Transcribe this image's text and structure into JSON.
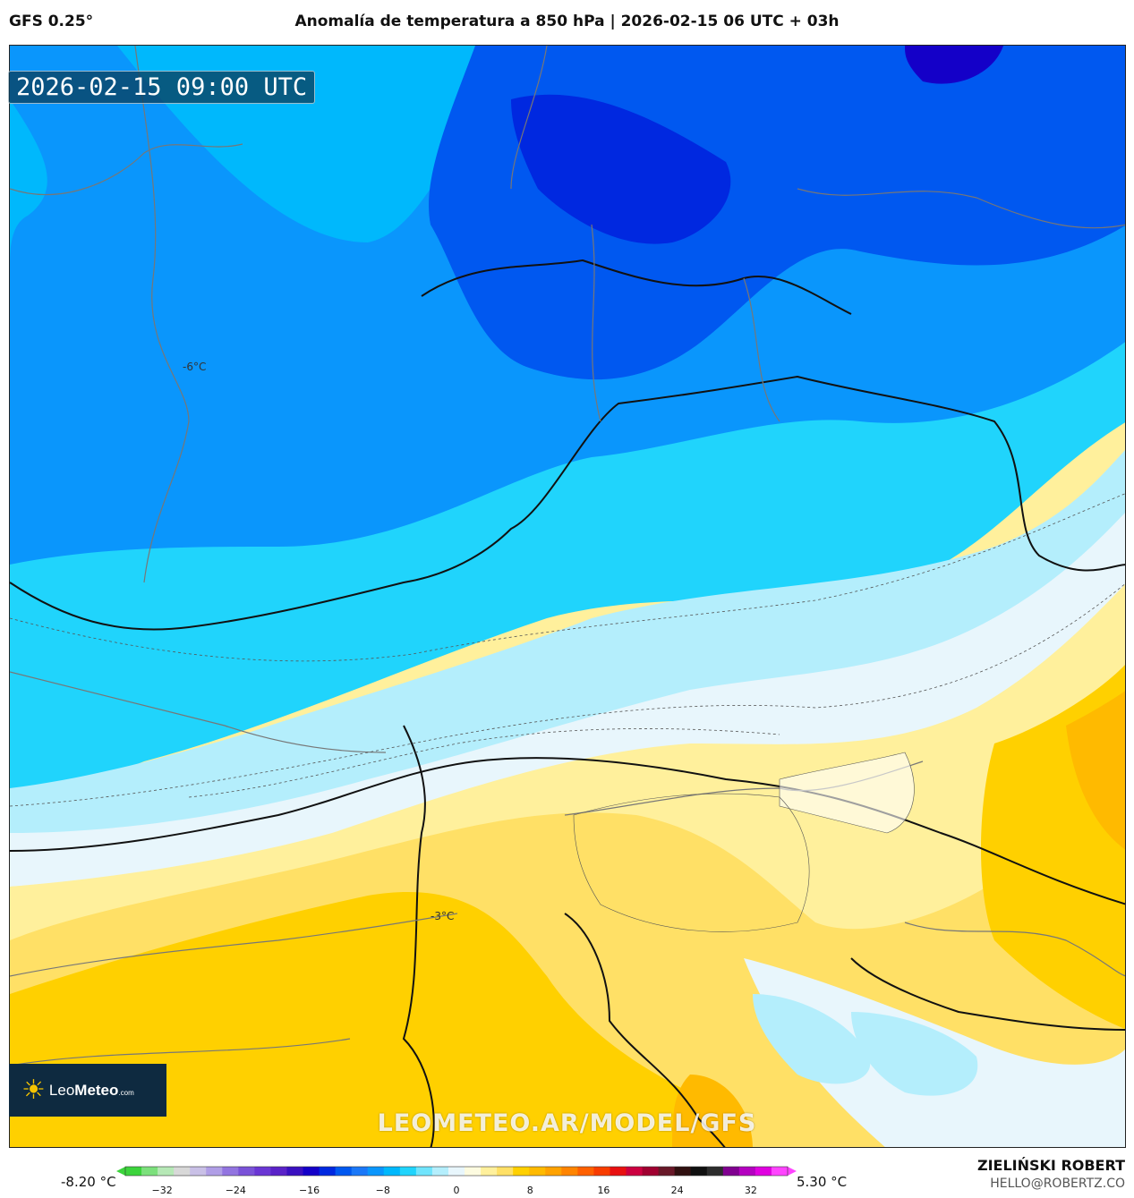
{
  "header": {
    "model": "GFS 0.25°",
    "title": "Anomalía de temperatura a 850 hPa | 2026-02-15 06 UTC + 03h"
  },
  "map": {
    "timestamp": "2026-02-15 09:00 UTC",
    "watermark_url": "LEOMETEO.AR/MODEL/GFS",
    "logo_text_light": "Leo",
    "logo_text_bold": "Meteo",
    "logo_text_suffix": ".com",
    "logo_icon": "sun-icon",
    "contour_labels": [
      "-6°C",
      "-3°C"
    ]
  },
  "colorbar": {
    "min_label": "-8.20 °C",
    "max_label": "5.30 °C",
    "ticks": [
      "−32",
      "−24",
      "−16",
      "−8",
      "0",
      "8",
      "16",
      "24",
      "32"
    ],
    "range": [
      -36,
      36
    ],
    "colors": [
      "#3cd43c",
      "#7ce07c",
      "#b6e8b6",
      "#d8d8d8",
      "#c9c0e6",
      "#b09ee6",
      "#9274e0",
      "#7a52d8",
      "#6a36d4",
      "#5a22c8",
      "#3a10c0",
      "#1400c8",
      "#0028e0",
      "#0058f0",
      "#1a78f8",
      "#0a96fc",
      "#00b8fc",
      "#20d4fc",
      "#70e4fc",
      "#b4eefc",
      "#e8f6fc",
      "#fdfbe0",
      "#fff09c",
      "#ffe066",
      "#ffd000",
      "#ffba00",
      "#ffa200",
      "#ff8400",
      "#ff6000",
      "#f83c00",
      "#e81010",
      "#cc0040",
      "#a00030",
      "#681828",
      "#301010",
      "#101010",
      "#2c2c2c",
      "#800090",
      "#b400c0",
      "#e000e0",
      "#ff44ff"
    ]
  },
  "credits": {
    "author": "ZIELIŃSKI ROBERT",
    "email": "HELLO@ROBERTZ.CO"
  }
}
